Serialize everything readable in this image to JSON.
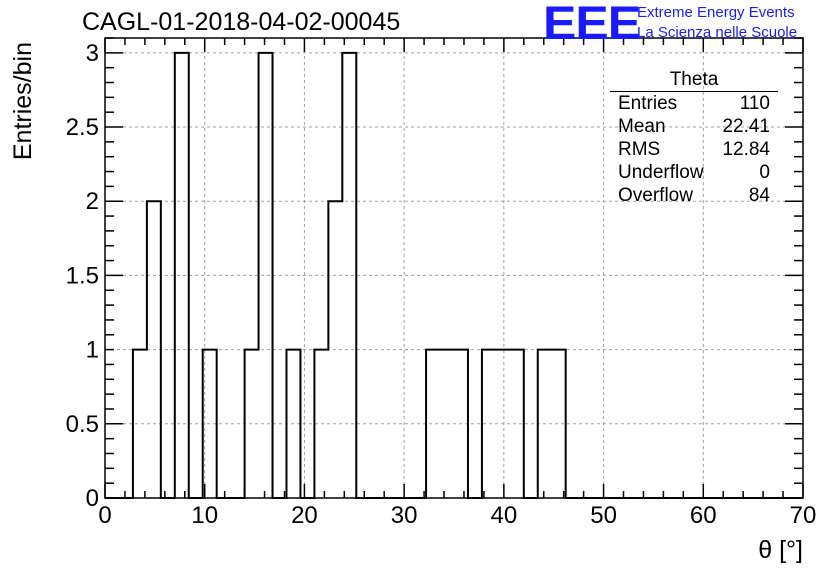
{
  "title": "CAGL-01-2018-04-02-00045",
  "logo": {
    "text": "EEE",
    "line1": "Extreme Energy Events",
    "line2": "La Scienza nelle Scuole",
    "color": "#1a1aff"
  },
  "stats": {
    "title": "Theta",
    "rows": [
      {
        "label": "Entries",
        "value": "110"
      },
      {
        "label": "Mean",
        "value": "22.41"
      },
      {
        "label": "RMS",
        "value": "12.84"
      },
      {
        "label": "Underflow",
        "value": "0"
      },
      {
        "label": "Overflow",
        "value": "84"
      }
    ]
  },
  "chart_data": {
    "type": "histogram",
    "xlabel": "θ [°]",
    "ylabel": "Entries/bin",
    "xlim": [
      0,
      70
    ],
    "ylim": [
      0,
      3.1
    ],
    "xticks": [
      0,
      10,
      20,
      30,
      40,
      50,
      60,
      70
    ],
    "yticks": [
      0,
      0.5,
      1,
      1.5,
      2,
      2.5,
      3
    ],
    "ytick_labels": [
      "0",
      "0.5",
      "1",
      "1.5",
      "2",
      "2.5",
      "3"
    ],
    "grid": true,
    "bin_edges": [
      0,
      1.4,
      2.8,
      4.2,
      5.6,
      7,
      8.4,
      9.8,
      11.2,
      12.6,
      14,
      15.4,
      16.8,
      18.2,
      19.6,
      21,
      22.4,
      23.8,
      25.2,
      26.6,
      28,
      29.4,
      30.8,
      32.2,
      33.6,
      35,
      36.4,
      37.8,
      39.2,
      40.6,
      42,
      43.4,
      44.8,
      46.2,
      47.6,
      49,
      50.4,
      51.8,
      53.2,
      54.6,
      56,
      57.4,
      58.8,
      60.2,
      61.6,
      63,
      64.4,
      65.8,
      67.2,
      68.6,
      70
    ],
    "counts": [
      0,
      0,
      1,
      2,
      0,
      3,
      0,
      1,
      0,
      0,
      1,
      3,
      0,
      1,
      0,
      1,
      2,
      3,
      0,
      0,
      0,
      0,
      0,
      1,
      1,
      1,
      0,
      1,
      1,
      1,
      0,
      1,
      1,
      0,
      0,
      0,
      0,
      0,
      0,
      0,
      0,
      0,
      0,
      0,
      0,
      0,
      0,
      0,
      0,
      0
    ],
    "line_color": "#000000",
    "grid_color": "#a0a0a0"
  }
}
